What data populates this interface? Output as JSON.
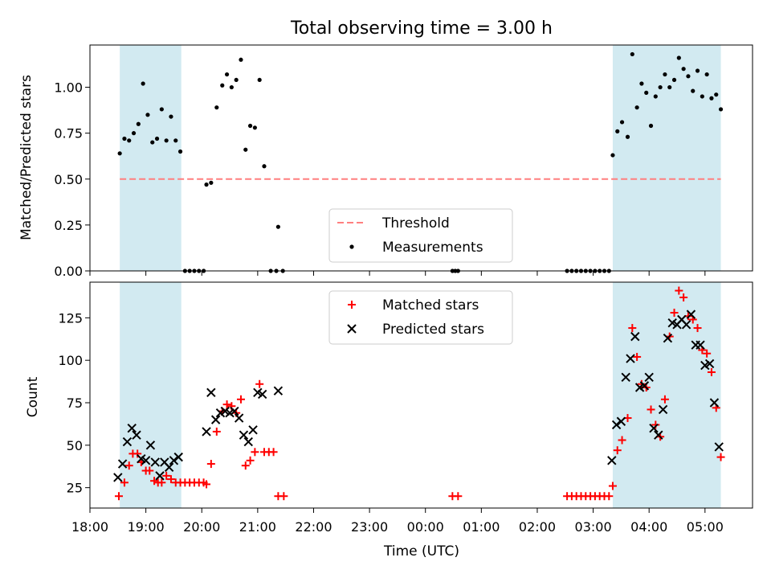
{
  "title": "Total observing time = 3.00 h",
  "colors": {
    "shade": "#add8e6",
    "threshold": "#ff7f7f",
    "measurement": "#000000",
    "matched": "#ff0000",
    "predicted": "#000000"
  },
  "chart_data": [
    {
      "type": "scatter",
      "ylabel": "Matched/Predicted stars",
      "ylim": [
        0,
        1.23
      ],
      "yticks": [
        "0.00",
        "0.25",
        "0.50",
        "0.75",
        "1.00"
      ],
      "xlim_hours": [
        18.0,
        29.85
      ],
      "shaded_intervals": [
        [
          "18:32",
          "19:38"
        ],
        [
          "03:21",
          "05:17"
        ]
      ],
      "threshold": {
        "name": "Threshold",
        "value": 0.5,
        "style": "dashed"
      },
      "legend": {
        "position": "lower-center",
        "entries": [
          "Threshold",
          "Measurements"
        ]
      },
      "series": [
        {
          "name": "Measurements",
          "points": [
            [
              "18:32",
              0.64
            ],
            [
              "18:37",
              0.72
            ],
            [
              "18:42",
              0.71
            ],
            [
              "18:47",
              0.75
            ],
            [
              "18:52",
              0.8
            ],
            [
              "18:57",
              1.02
            ],
            [
              "19:02",
              0.85
            ],
            [
              "19:07",
              0.7
            ],
            [
              "19:12",
              0.72
            ],
            [
              "19:17",
              0.88
            ],
            [
              "19:22",
              0.71
            ],
            [
              "19:27",
              0.84
            ],
            [
              "19:32",
              0.71
            ],
            [
              "19:37",
              0.65
            ],
            [
              "19:42",
              0.0
            ],
            [
              "19:47",
              0.0
            ],
            [
              "19:52",
              0.0
            ],
            [
              "19:57",
              0.0
            ],
            [
              "20:02",
              0.0
            ],
            [
              "20:05",
              0.47
            ],
            [
              "20:10",
              0.48
            ],
            [
              "20:16",
              0.89
            ],
            [
              "20:22",
              1.01
            ],
            [
              "20:27",
              1.07
            ],
            [
              "20:32",
              1.0
            ],
            [
              "20:37",
              1.04
            ],
            [
              "20:42",
              1.15
            ],
            [
              "20:47",
              0.66
            ],
            [
              "20:52",
              0.79
            ],
            [
              "20:57",
              0.78
            ],
            [
              "21:02",
              1.04
            ],
            [
              "21:07",
              0.57
            ],
            [
              "21:14",
              0.0
            ],
            [
              "21:20",
              0.0
            ],
            [
              "21:22",
              0.24
            ],
            [
              "21:27",
              0.0
            ],
            [
              "00:29",
              0.0
            ],
            [
              "00:32",
              0.0
            ],
            [
              "00:35",
              0.0
            ],
            [
              "02:32",
              0.0
            ],
            [
              "02:37",
              0.0
            ],
            [
              "02:42",
              0.0
            ],
            [
              "02:47",
              0.0
            ],
            [
              "02:52",
              0.0
            ],
            [
              "02:57",
              0.0
            ],
            [
              "03:02",
              0.0
            ],
            [
              "03:07",
              0.0
            ],
            [
              "03:12",
              0.0
            ],
            [
              "03:17",
              0.0
            ],
            [
              "03:21",
              0.63
            ],
            [
              "03:26",
              0.76
            ],
            [
              "03:31",
              0.81
            ],
            [
              "03:37",
              0.73
            ],
            [
              "03:42",
              1.18
            ],
            [
              "03:47",
              0.89
            ],
            [
              "03:52",
              1.02
            ],
            [
              "03:57",
              0.97
            ],
            [
              "04:02",
              0.79
            ],
            [
              "04:07",
              0.95
            ],
            [
              "04:12",
              1.0
            ],
            [
              "04:17",
              1.07
            ],
            [
              "04:22",
              1.0
            ],
            [
              "04:27",
              1.04
            ],
            [
              "04:32",
              1.16
            ],
            [
              "04:37",
              1.1
            ],
            [
              "04:42",
              1.06
            ],
            [
              "04:47",
              0.98
            ],
            [
              "04:52",
              1.09
            ],
            [
              "04:57",
              0.95
            ],
            [
              "05:02",
              1.07
            ],
            [
              "05:07",
              0.94
            ],
            [
              "05:12",
              0.96
            ],
            [
              "05:17",
              0.88
            ]
          ]
        }
      ]
    },
    {
      "type": "scatter",
      "xlabel": "Time (UTC)",
      "ylabel": "Count",
      "ylim": [
        13,
        146
      ],
      "yticks": [
        "25",
        "50",
        "75",
        "100",
        "125"
      ],
      "xticks": [
        "18:00",
        "19:00",
        "20:00",
        "21:00",
        "22:00",
        "23:00",
        "00:00",
        "01:00",
        "02:00",
        "03:00",
        "04:00",
        "05:00"
      ],
      "xlim_hours": [
        18.0,
        29.85
      ],
      "shaded_intervals": [
        [
          "18:32",
          "19:38"
        ],
        [
          "03:21",
          "05:17"
        ]
      ],
      "legend": {
        "position": "top-center",
        "entries": [
          "Matched stars",
          "Predicted stars"
        ]
      },
      "series": [
        {
          "name": "Matched stars",
          "marker": "+",
          "points": [
            [
              "18:31",
              20
            ],
            [
              "18:37",
              28
            ],
            [
              "18:42",
              38
            ],
            [
              "18:46",
              45
            ],
            [
              "18:51",
              45
            ],
            [
              "18:55",
              40
            ],
            [
              "19:00",
              35
            ],
            [
              "19:04",
              35
            ],
            [
              "19:09",
              29
            ],
            [
              "19:13",
              28
            ],
            [
              "19:17",
              28
            ],
            [
              "19:22",
              32
            ],
            [
              "19:27",
              30
            ],
            [
              "19:32",
              28
            ],
            [
              "19:37",
              28
            ],
            [
              "19:42",
              28
            ],
            [
              "19:47",
              28
            ],
            [
              "19:52",
              28
            ],
            [
              "19:57",
              28
            ],
            [
              "20:02",
              28
            ],
            [
              "20:05",
              27
            ],
            [
              "20:10",
              39
            ],
            [
              "20:16",
              58
            ],
            [
              "20:22",
              70
            ],
            [
              "20:27",
              74
            ],
            [
              "20:32",
              73
            ],
            [
              "20:37",
              69
            ],
            [
              "20:42",
              77
            ],
            [
              "20:47",
              38
            ],
            [
              "20:52",
              41
            ],
            [
              "20:57",
              46
            ],
            [
              "21:02",
              86
            ],
            [
              "21:07",
              46
            ],
            [
              "21:12",
              46
            ],
            [
              "21:17",
              46
            ],
            [
              "21:22",
              20
            ],
            [
              "21:28",
              20
            ],
            [
              "00:29",
              20
            ],
            [
              "00:35",
              20
            ],
            [
              "02:32",
              20
            ],
            [
              "02:37",
              20
            ],
            [
              "02:42",
              20
            ],
            [
              "02:47",
              20
            ],
            [
              "02:52",
              20
            ],
            [
              "02:57",
              20
            ],
            [
              "03:02",
              20
            ],
            [
              "03:07",
              20
            ],
            [
              "03:12",
              20
            ],
            [
              "03:17",
              20
            ],
            [
              "03:21",
              26
            ],
            [
              "03:26",
              47
            ],
            [
              "03:31",
              53
            ],
            [
              "03:37",
              66
            ],
            [
              "03:42",
              119
            ],
            [
              "03:47",
              102
            ],
            [
              "03:52",
              86
            ],
            [
              "03:57",
              84
            ],
            [
              "04:02",
              71
            ],
            [
              "04:07",
              62
            ],
            [
              "04:12",
              55
            ],
            [
              "04:17",
              77
            ],
            [
              "04:22",
              114
            ],
            [
              "04:27",
              128
            ],
            [
              "04:32",
              141
            ],
            [
              "04:37",
              137
            ],
            [
              "04:42",
              126
            ],
            [
              "04:47",
              124
            ],
            [
              "04:52",
              119
            ],
            [
              "04:57",
              106
            ],
            [
              "05:02",
              104
            ],
            [
              "05:07",
              93
            ],
            [
              "05:12",
              72
            ],
            [
              "05:17",
              43
            ]
          ]
        },
        {
          "name": "Predicted stars",
          "marker": "x",
          "points": [
            [
              "18:30",
              31
            ],
            [
              "18:35",
              39
            ],
            [
              "18:40",
              52
            ],
            [
              "18:45",
              60
            ],
            [
              "18:50",
              56
            ],
            [
              "18:55",
              42
            ],
            [
              "19:00",
              41
            ],
            [
              "19:05",
              50
            ],
            [
              "19:10",
              40
            ],
            [
              "19:15",
              32
            ],
            [
              "19:20",
              40
            ],
            [
              "19:25",
              37
            ],
            [
              "19:30",
              41
            ],
            [
              "19:35",
              43
            ],
            [
              "20:05",
              58
            ],
            [
              "20:10",
              81
            ],
            [
              "20:15",
              65
            ],
            [
              "20:20",
              69
            ],
            [
              "20:25",
              70
            ],
            [
              "20:30",
              69
            ],
            [
              "20:35",
              70
            ],
            [
              "20:40",
              66
            ],
            [
              "20:45",
              56
            ],
            [
              "20:50",
              52
            ],
            [
              "20:55",
              59
            ],
            [
              "21:00",
              81
            ],
            [
              "21:05",
              80
            ],
            [
              "21:22",
              82
            ],
            [
              "03:20",
              41
            ],
            [
              "03:25",
              62
            ],
            [
              "03:30",
              64
            ],
            [
              "03:35",
              90
            ],
            [
              "03:40",
              101
            ],
            [
              "03:45",
              114
            ],
            [
              "03:50",
              84
            ],
            [
              "03:55",
              85
            ],
            [
              "04:00",
              90
            ],
            [
              "04:05",
              60
            ],
            [
              "04:10",
              56
            ],
            [
              "04:15",
              71
            ],
            [
              "04:20",
              113
            ],
            [
              "04:25",
              122
            ],
            [
              "04:30",
              121
            ],
            [
              "04:35",
              124
            ],
            [
              "04:40",
              121
            ],
            [
              "04:45",
              127
            ],
            [
              "04:50",
              109
            ],
            [
              "04:55",
              109
            ],
            [
              "05:00",
              97
            ],
            [
              "05:05",
              98
            ],
            [
              "05:10",
              75
            ],
            [
              "05:15",
              49
            ]
          ]
        }
      ]
    }
  ]
}
